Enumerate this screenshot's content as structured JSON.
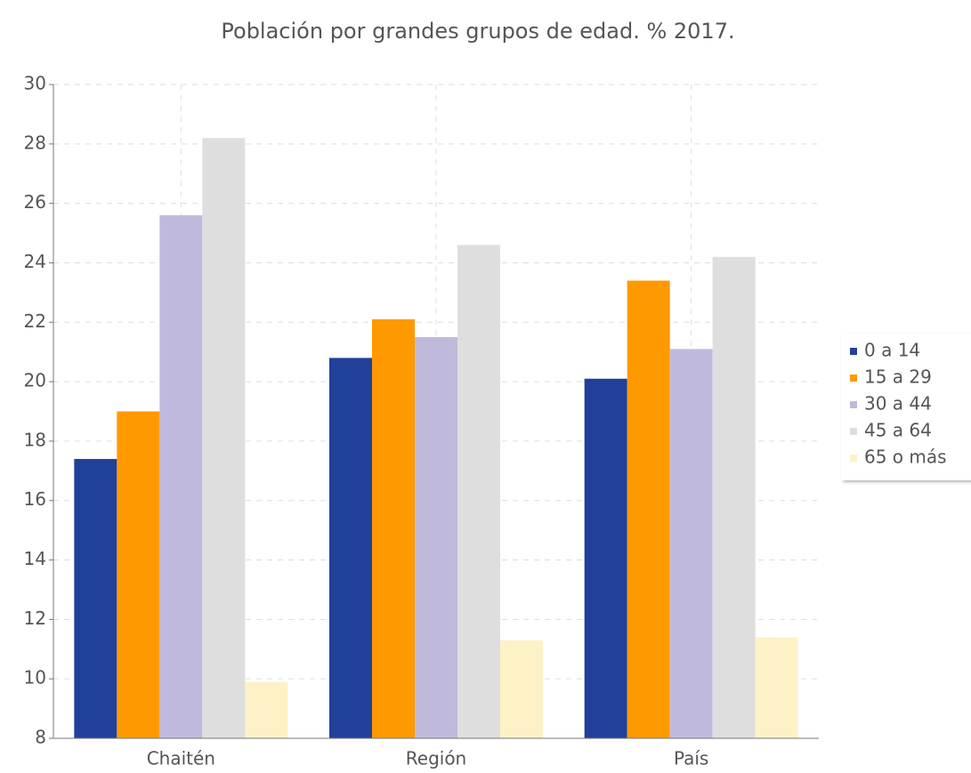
{
  "chart_data": {
    "type": "bar",
    "title": "Población por grandes grupos de edad. % 2017.",
    "categories": [
      "Chaitén",
      "Región",
      "País"
    ],
    "series": [
      {
        "name": "0 a 14",
        "color": "#21409a",
        "values": [
          17.4,
          20.8,
          20.1
        ]
      },
      {
        "name": "15 a 29",
        "color": "#ff9900",
        "values": [
          19.0,
          22.1,
          23.4
        ]
      },
      {
        "name": "30 a 44",
        "color": "#bfbadc",
        "values": [
          25.6,
          21.5,
          21.1
        ]
      },
      {
        "name": "45 a 64",
        "color": "#dedede",
        "values": [
          28.2,
          24.6,
          24.2
        ]
      },
      {
        "name": "65 o más",
        "color": "#fdf1c6",
        "values": [
          9.9,
          11.3,
          11.4
        ]
      }
    ],
    "ylim": [
      8,
      30
    ],
    "yticks": [
      8,
      10,
      12,
      14,
      16,
      18,
      20,
      22,
      24,
      26,
      28,
      30
    ],
    "grid": true,
    "legend": "right"
  }
}
